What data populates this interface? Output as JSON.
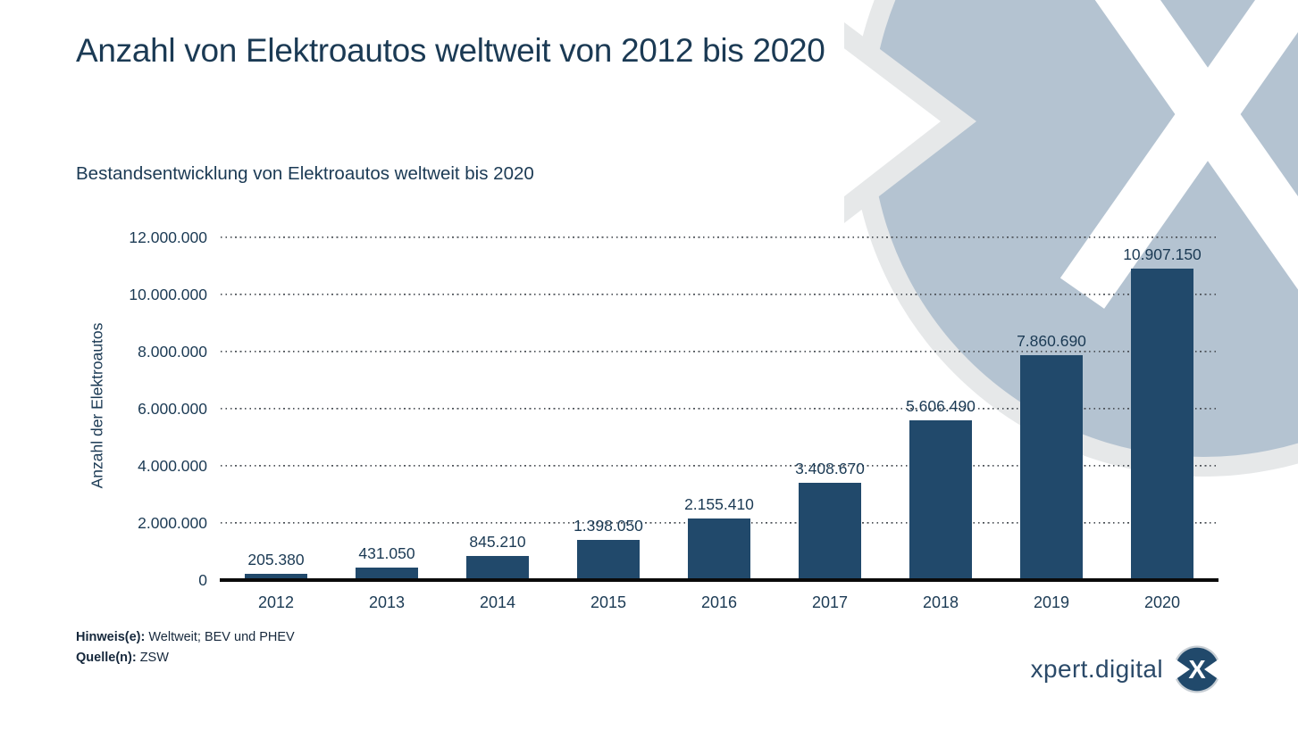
{
  "header": {
    "title": "Anzahl von Elektroautos weltweit von 2012 bis 2020",
    "subtitle": "Bestandsentwicklung von Elektroautos weltweit bis 2020"
  },
  "chart_data": {
    "type": "bar",
    "title": "Anzahl von Elektroautos weltweit von 2012 bis 2020",
    "xlabel": "",
    "ylabel": "Anzahl der Elektroautos",
    "categories": [
      "2012",
      "2013",
      "2014",
      "2015",
      "2016",
      "2017",
      "2018",
      "2019",
      "2020"
    ],
    "values": [
      205380,
      431050,
      845210,
      1398050,
      2155410,
      3408670,
      5606490,
      7860690,
      10907150
    ],
    "value_labels": [
      "205.380",
      "431.050",
      "845.210",
      "1.398.050",
      "2.155.410",
      "3.408.670",
      "5.606.490",
      "7.860.690",
      "10.907.150"
    ],
    "ylim": [
      0,
      12000000
    ],
    "yticks": {
      "values": [
        0,
        2000000,
        4000000,
        6000000,
        8000000,
        10000000,
        12000000
      ],
      "labels": [
        "0",
        "2.000.000",
        "4.000.000",
        "6.000.000",
        "8.000.000",
        "10.000.000",
        "12.000.000"
      ]
    },
    "grid": "horizontal-dotted",
    "legend": "none",
    "bar_color": "#21496b"
  },
  "footer": {
    "note_label": "Hinweis(e):",
    "note_text": "Weltweit; BEV und PHEV",
    "source_label": "Quelle(n):",
    "source_text": "ZSW"
  },
  "branding": {
    "logo_text": "xpert.digital",
    "logo_badge_letter": "X"
  },
  "colors": {
    "bar": "#21496b",
    "text_navy": "#1b3a54",
    "watermark_blue": "#b4c3d1",
    "watermark_gray": "#e6e8e9",
    "badge_navy": "#21496b",
    "axis_line": "#0a0a0a"
  }
}
